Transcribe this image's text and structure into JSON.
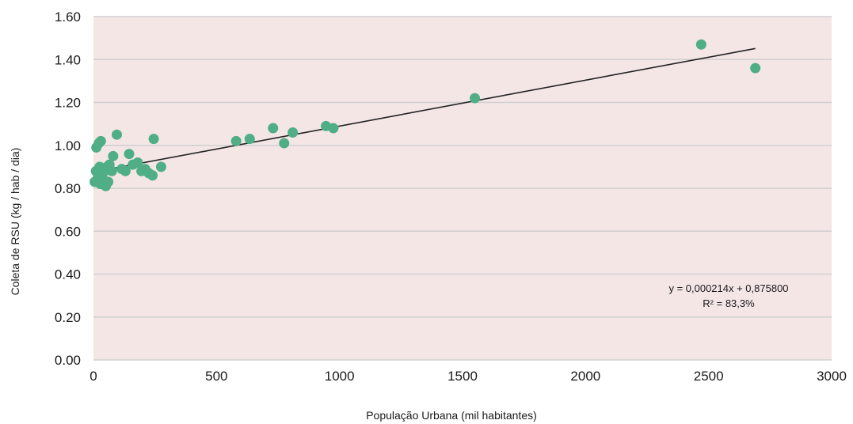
{
  "chart_data": {
    "type": "scatter",
    "title": "",
    "xlabel": "População Urbana (mil habitantes)",
    "ylabel": "Coleta de RSU (kg / hab / dia)",
    "xlim": [
      0,
      3000
    ],
    "ylim": [
      0,
      1.6
    ],
    "x_ticks": [
      0,
      500,
      1000,
      1500,
      2000,
      2500,
      3000
    ],
    "x_tick_labels": [
      "0",
      "500",
      "1000",
      "1500",
      "2000",
      "2500",
      "3000"
    ],
    "y_ticks": [
      0,
      0.2,
      0.4,
      0.6,
      0.8,
      1.0,
      1.2,
      1.4,
      1.6
    ],
    "y_tick_labels": [
      "0.00",
      "0.20",
      "0.40",
      "0.60",
      "0.80",
      "1.00",
      "1.20",
      "1.40",
      "1.60"
    ],
    "grid": "horizontal",
    "legend": "none",
    "colors": {
      "plot_background": "#f5e6e6",
      "gridline": "#cfcfcf",
      "point": "#4fae86",
      "trendline": "#222222"
    },
    "points": [
      {
        "x": 5,
        "y": 0.83
      },
      {
        "x": 10,
        "y": 0.88
      },
      {
        "x": 12,
        "y": 0.99
      },
      {
        "x": 18,
        "y": 0.85
      },
      {
        "x": 22,
        "y": 1.01
      },
      {
        "x": 25,
        "y": 0.9
      },
      {
        "x": 28,
        "y": 0.82
      },
      {
        "x": 30,
        "y": 1.02
      },
      {
        "x": 35,
        "y": 0.86
      },
      {
        "x": 40,
        "y": 0.84
      },
      {
        "x": 45,
        "y": 0.88
      },
      {
        "x": 50,
        "y": 0.81
      },
      {
        "x": 55,
        "y": 0.9
      },
      {
        "x": 60,
        "y": 0.83
      },
      {
        "x": 65,
        "y": 0.91
      },
      {
        "x": 75,
        "y": 0.88
      },
      {
        "x": 80,
        "y": 0.95
      },
      {
        "x": 95,
        "y": 1.05
      },
      {
        "x": 115,
        "y": 0.89
      },
      {
        "x": 130,
        "y": 0.88
      },
      {
        "x": 145,
        "y": 0.96
      },
      {
        "x": 160,
        "y": 0.91
      },
      {
        "x": 180,
        "y": 0.92
      },
      {
        "x": 195,
        "y": 0.88
      },
      {
        "x": 210,
        "y": 0.89
      },
      {
        "x": 225,
        "y": 0.87
      },
      {
        "x": 240,
        "y": 0.86
      },
      {
        "x": 245,
        "y": 1.03
      },
      {
        "x": 275,
        "y": 0.9
      },
      {
        "x": 580,
        "y": 1.02
      },
      {
        "x": 635,
        "y": 1.03
      },
      {
        "x": 730,
        "y": 1.08
      },
      {
        "x": 775,
        "y": 1.01
      },
      {
        "x": 810,
        "y": 1.06
      },
      {
        "x": 945,
        "y": 1.09
      },
      {
        "x": 975,
        "y": 1.08
      },
      {
        "x": 1550,
        "y": 1.22
      },
      {
        "x": 2470,
        "y": 1.47
      },
      {
        "x": 2690,
        "y": 1.36
      }
    ],
    "trendline": {
      "type": "linear",
      "slope": 0.000214,
      "intercept": 0.8758,
      "x_range": [
        0,
        2690
      ],
      "equation_label": "y = 0,000214x + 0,875800",
      "r2_label": "R² = 83,3%"
    }
  }
}
